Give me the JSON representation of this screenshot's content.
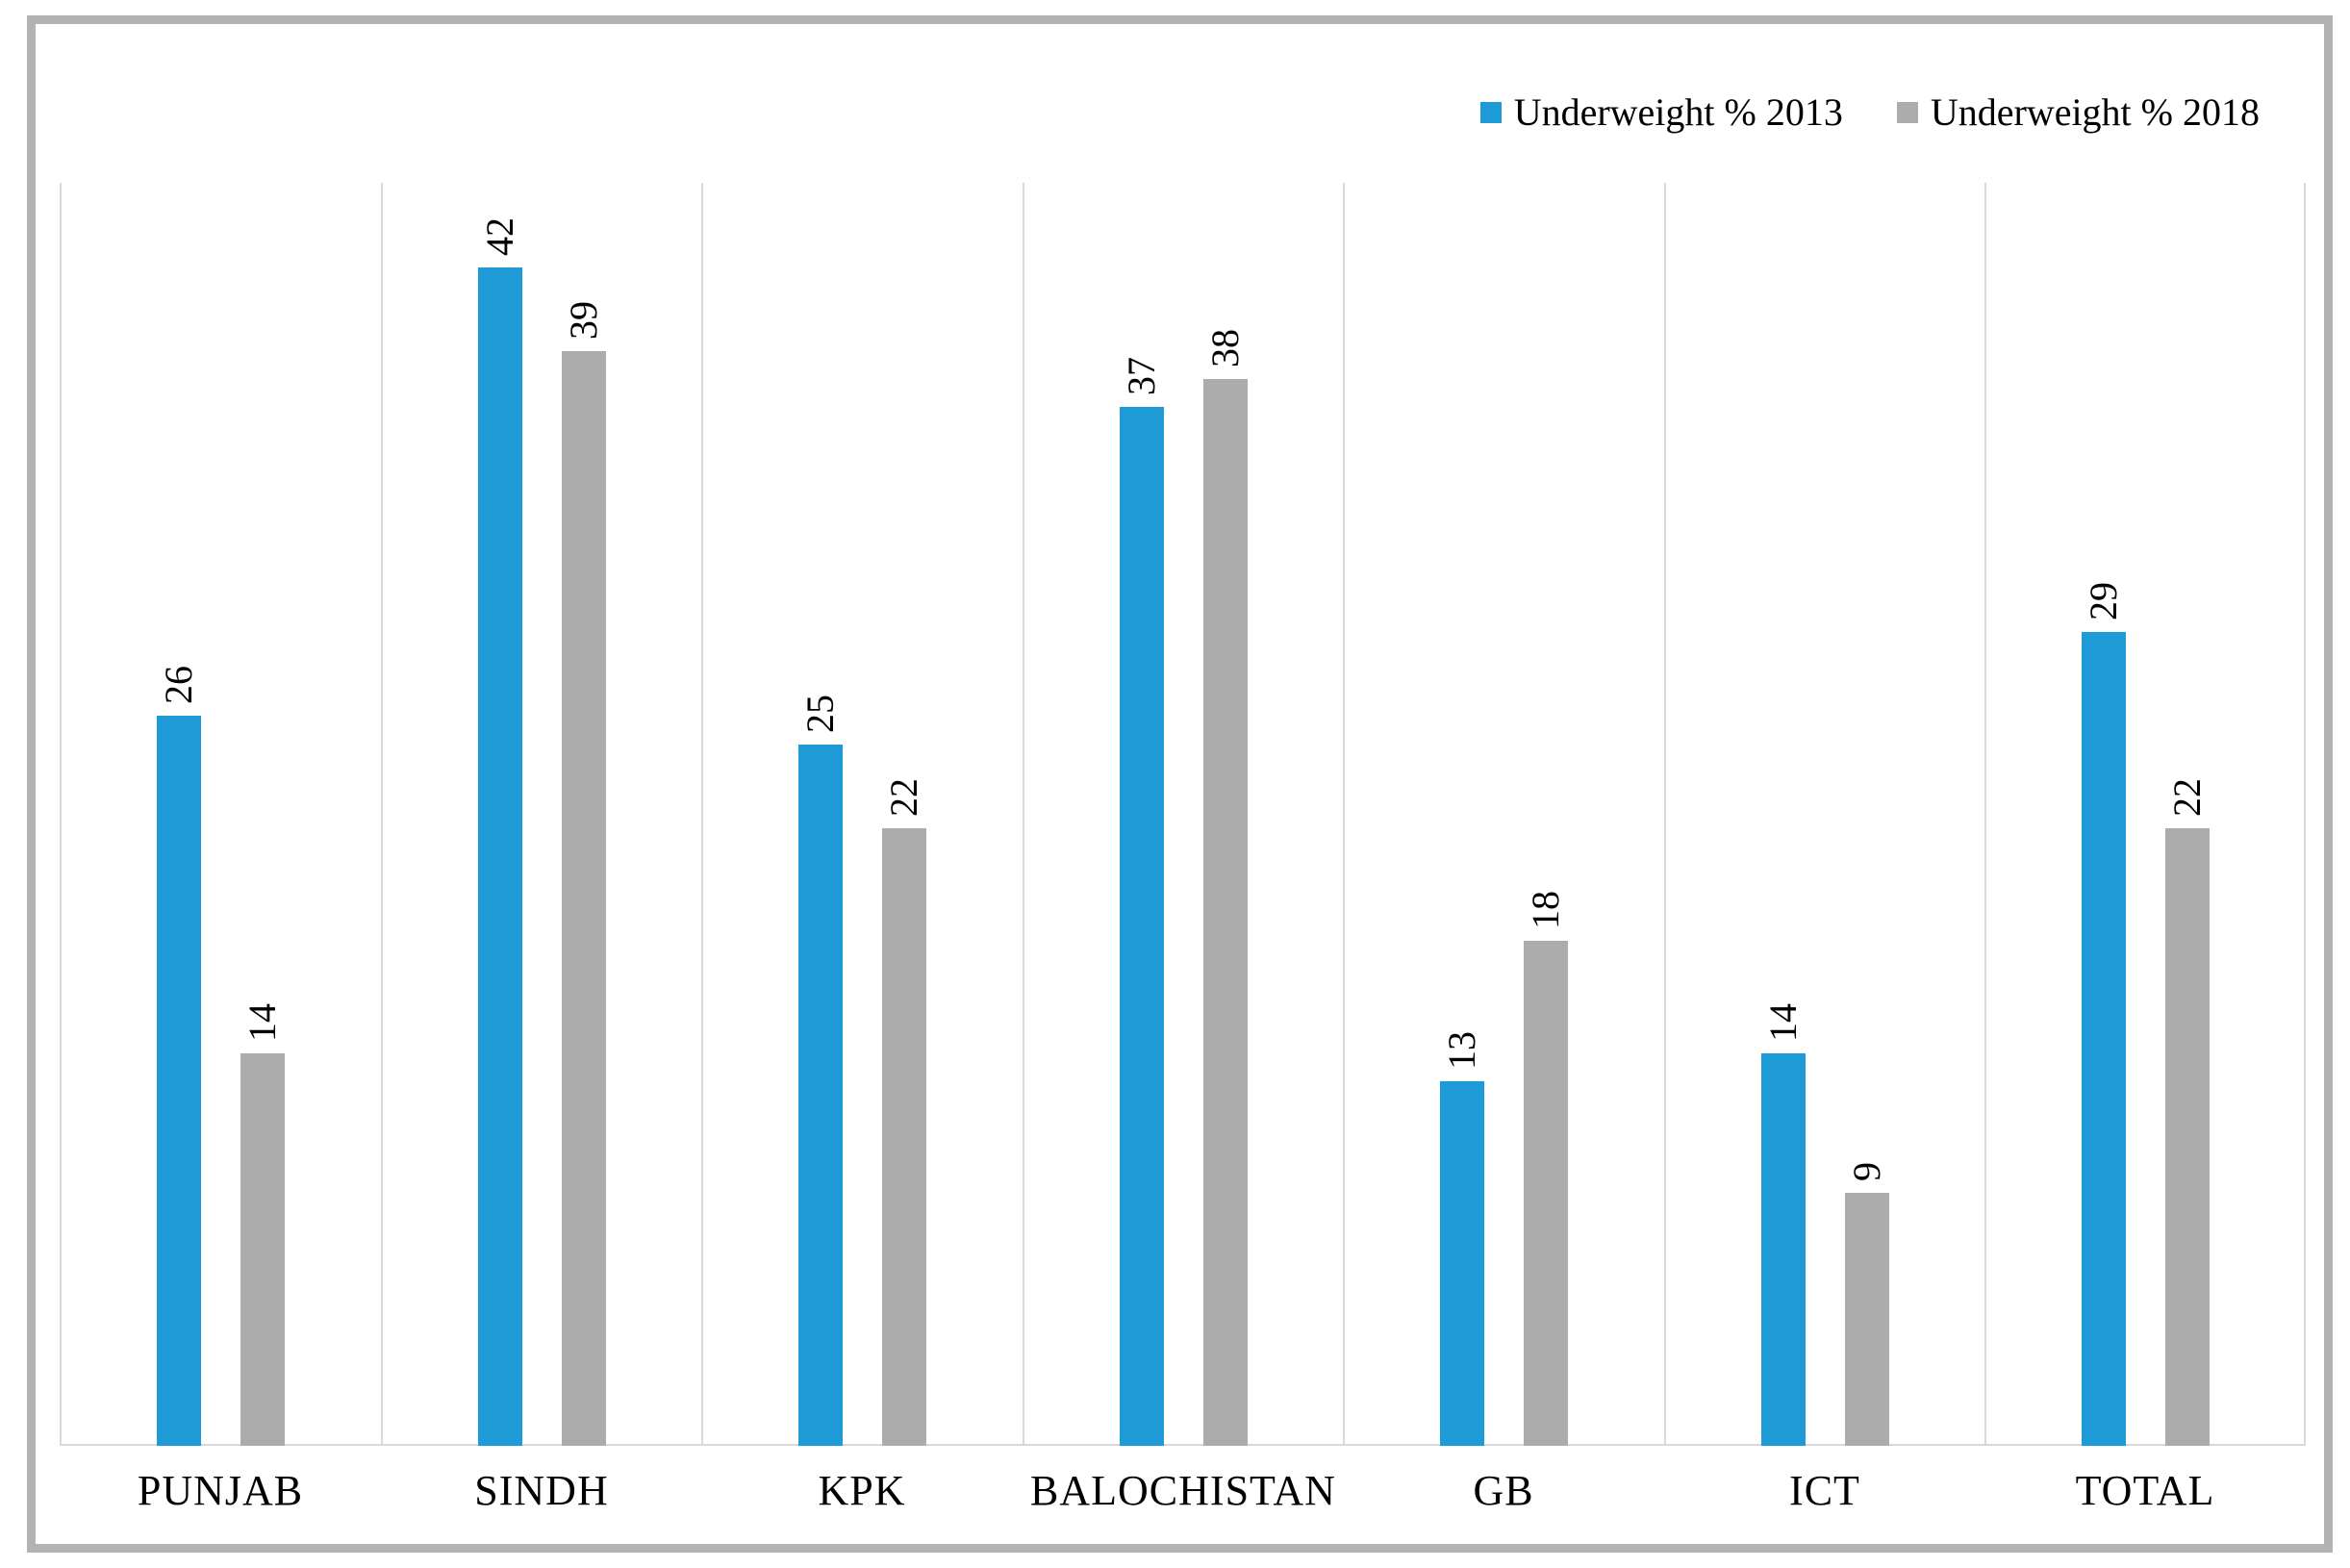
{
  "chart_data": {
    "type": "bar",
    "title": "",
    "xlabel": "",
    "ylabel": "",
    "categories": [
      "PUNJAB",
      "SINDH",
      "KPK",
      "BALOCHISTAN",
      "GB",
      "ICT",
      "TOTAL"
    ],
    "series": [
      {
        "name": "Underweight % 2013",
        "color": "#1e9ad6",
        "values": [
          26,
          42,
          25,
          37,
          13,
          14,
          29
        ]
      },
      {
        "name": "Underweight % 2018",
        "color": "#acacac",
        "values": [
          14,
          39,
          22,
          38,
          18,
          9,
          22
        ]
      }
    ],
    "ylim": [
      0,
      45
    ],
    "grid": "vertical-category-separators",
    "legend_position": "top-right",
    "value_label_rotation": 90
  },
  "styles": {
    "background": "#ffffff",
    "frame_color": "#b3b3b3",
    "gridline_color": "#d9d9d9",
    "axis_line_color": "#d9d9d9",
    "text_color": "#000000"
  }
}
